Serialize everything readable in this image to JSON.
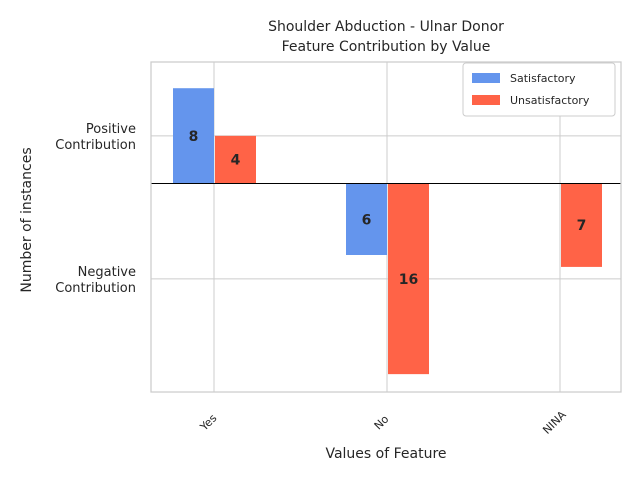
{
  "chart_data": {
    "type": "bar",
    "title": [
      "Shoulder Abduction - Ulnar Donor",
      "Feature Contribution by Value"
    ],
    "xlabel": "Values of Feature",
    "ylabel": "Number of instances",
    "categories": [
      "Yes",
      "No",
      "NINA"
    ],
    "series": [
      {
        "name": "Satisfactory",
        "color": "#6495ED",
        "values": [
          8,
          -6,
          null
        ],
        "labels": [
          "8",
          "6",
          ""
        ]
      },
      {
        "name": "Unsatisfactory",
        "color": "#FF6347",
        "values": [
          4,
          -16,
          -7
        ],
        "labels": [
          "4",
          "16",
          "7"
        ]
      }
    ],
    "yticks": [
      {
        "value": 4,
        "label": [
          "Positive",
          "Contribution"
        ]
      },
      {
        "value": -8,
        "label": [
          "Negative",
          "Contribution"
        ]
      }
    ],
    "ylim": [
      -17.5,
      10.2
    ],
    "grid": true,
    "legend_position": "top-right",
    "zero_line": true
  }
}
